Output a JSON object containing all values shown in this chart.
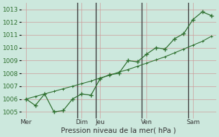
{
  "xlabel": "Pression niveau de la mer( hPa )",
  "background_color": "#cce8dd",
  "grid_color": "#cc9999",
  "line_color": "#2d6e2d",
  "ylim": [
    1004.5,
    1013.5
  ],
  "yticks": [
    1005,
    1006,
    1007,
    1008,
    1009,
    1010,
    1011,
    1012,
    1013
  ],
  "day_labels": [
    "Mer",
    "Dim",
    "Jeu",
    "Ven",
    "Sam"
  ],
  "day_tick_positions": [
    0,
    6,
    8,
    13,
    18
  ],
  "vline_x": [
    5.5,
    7.5,
    12.5,
    17.5
  ],
  "xlim": [
    -0.5,
    20.5
  ],
  "jagged_x": [
    0,
    1,
    2,
    3,
    4,
    5,
    6,
    7,
    8,
    9,
    10,
    11,
    12,
    13,
    14,
    15,
    16,
    17,
    18,
    19,
    20
  ],
  "jagged_y": [
    1006.0,
    1005.5,
    1006.4,
    1005.0,
    1005.1,
    1006.0,
    1006.4,
    1006.3,
    1007.6,
    1007.9,
    1008.0,
    1009.0,
    1008.9,
    1009.5,
    1010.0,
    1009.9,
    1010.7,
    1011.1,
    1012.2,
    1012.8,
    1012.5
  ],
  "trend_x": [
    0,
    1,
    2,
    3,
    4,
    5,
    6,
    7,
    8,
    9,
    10,
    11,
    12,
    13,
    14,
    15,
    16,
    17,
    18,
    19,
    20
  ],
  "trend_y": [
    1006.0,
    1006.2,
    1006.4,
    1006.6,
    1006.8,
    1007.0,
    1007.2,
    1007.4,
    1007.65,
    1007.85,
    1008.1,
    1008.3,
    1008.55,
    1008.8,
    1009.05,
    1009.3,
    1009.6,
    1009.9,
    1010.2,
    1010.5,
    1010.9
  ],
  "xlabel_fontsize": 7.5,
  "ytick_fontsize": 6.5,
  "xtick_fontsize": 6.5
}
